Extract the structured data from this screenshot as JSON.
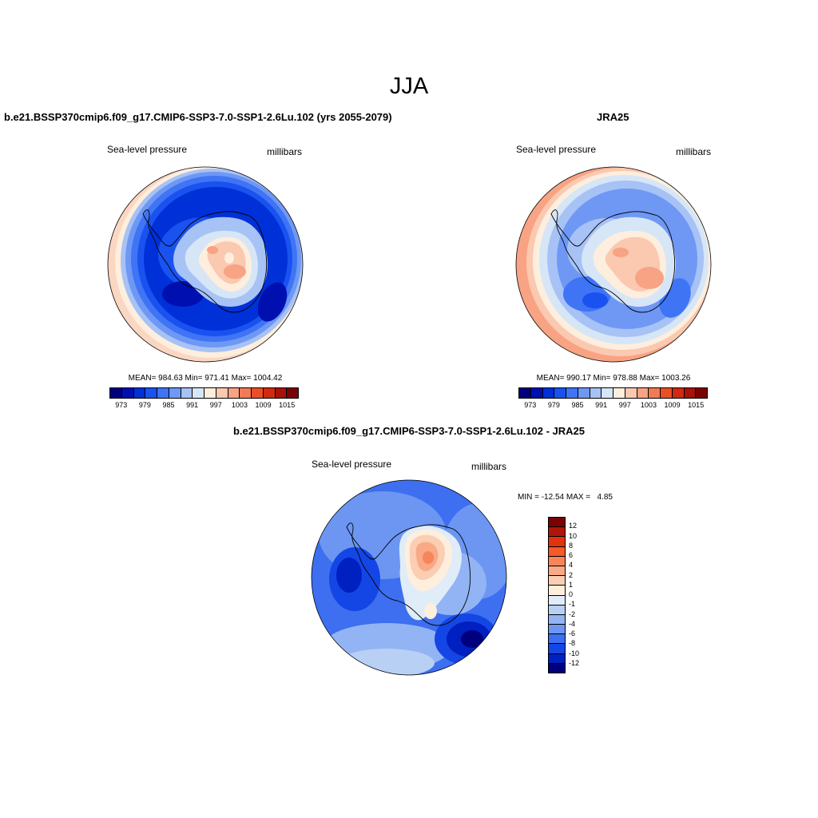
{
  "season": "JJA",
  "panels": [
    {
      "title": "b.e21.BSSP370cmip6.f09_g17.CMIP6-SSP3-7.0-SSP1-2.6Lu.102 (yrs 2055-2079)",
      "variable": "Sea-level pressure",
      "units": "millibars",
      "mean": "984.63",
      "min": "971.41",
      "max": "1004.42",
      "stats_text": "MEAN= 984.63   Min= 971.41   Max= 1004.42"
    },
    {
      "title": "JRA25",
      "variable": "Sea-level pressure",
      "units": "millibars",
      "mean": "990.17",
      "min": "978.88",
      "max": "1003.26",
      "stats_text": "MEAN= 990.17   Min= 978.88   Max= 1003.26"
    },
    {
      "title": "b.e21.BSSP370cmip6.f09_g17.CMIP6-SSP3-7.0-SSP1-2.6Lu.102 - JRA25",
      "variable": "Sea-level pressure",
      "units": "millibars",
      "min": "-12.54",
      "max": "4.85",
      "stats_text": "MIN = -12.54 MAX =   4.85"
    }
  ],
  "abs_colorbar": {
    "colors": [
      "#00007f",
      "#0010b0",
      "#0030d8",
      "#1a52f0",
      "#3f74f5",
      "#6f98f5",
      "#a7c2f5",
      "#d6e6f7",
      "#fdeedd",
      "#fbc8b0",
      "#f8a383",
      "#f27a55",
      "#ec4f24",
      "#d12a10",
      "#a71307",
      "#7a0202"
    ],
    "tick_labels": [
      "973",
      "979",
      "985",
      "991",
      "997",
      "1003",
      "1009",
      "1015"
    ]
  },
  "diff_colorbar": {
    "colors": [
      "#7a0202",
      "#b01607",
      "#e0330e",
      "#f65a26",
      "#f8855a",
      "#f9a985",
      "#fbcdb2",
      "#fdeedd",
      "#e0ecf8",
      "#b9d0f5",
      "#93b4f4",
      "#6c96f2",
      "#3d6ff0",
      "#1446e6",
      "#0020c0",
      "#00007f"
    ],
    "tick_labels": [
      "12",
      "10",
      "8",
      "6",
      "4",
      "2",
      "1",
      "0",
      "-1",
      "-2",
      "-4",
      "-6",
      "-8",
      "-10",
      "-12"
    ]
  },
  "chart_data": [
    {
      "type": "heatmap",
      "title": "b.e21.BSSP370cmip6.f09_g17.CMIP6-SSP3-7.0-SSP1-2.6Lu.102 (yrs 2055-2079)",
      "field": "Sea-level pressure",
      "units": "millibars",
      "mean": 984.63,
      "min": 971.41,
      "max": 1004.42,
      "contour_levels": [
        973,
        976,
        979,
        982,
        985,
        988,
        991,
        994,
        997,
        1000,
        1003,
        1006,
        1009,
        1012,
        1015
      ]
    },
    {
      "type": "heatmap",
      "title": "JRA25",
      "field": "Sea-level pressure",
      "units": "millibars",
      "mean": 990.17,
      "min": 978.88,
      "max": 1003.26,
      "contour_levels": [
        973,
        976,
        979,
        982,
        985,
        988,
        991,
        994,
        997,
        1000,
        1003,
        1006,
        1009,
        1012,
        1015
      ]
    },
    {
      "type": "heatmap",
      "title": "b.e21.BSSP370cmip6.f09_g17.CMIP6-SSP3-7.0-SSP1-2.6Lu.102 - JRA25",
      "field": "Sea-level pressure",
      "units": "millibars",
      "min": -12.54,
      "max": 4.85,
      "contour_levels": [
        -12,
        -10,
        -8,
        -6,
        -4,
        -2,
        -1,
        0,
        1,
        2,
        4,
        6,
        8,
        10,
        12
      ]
    }
  ]
}
